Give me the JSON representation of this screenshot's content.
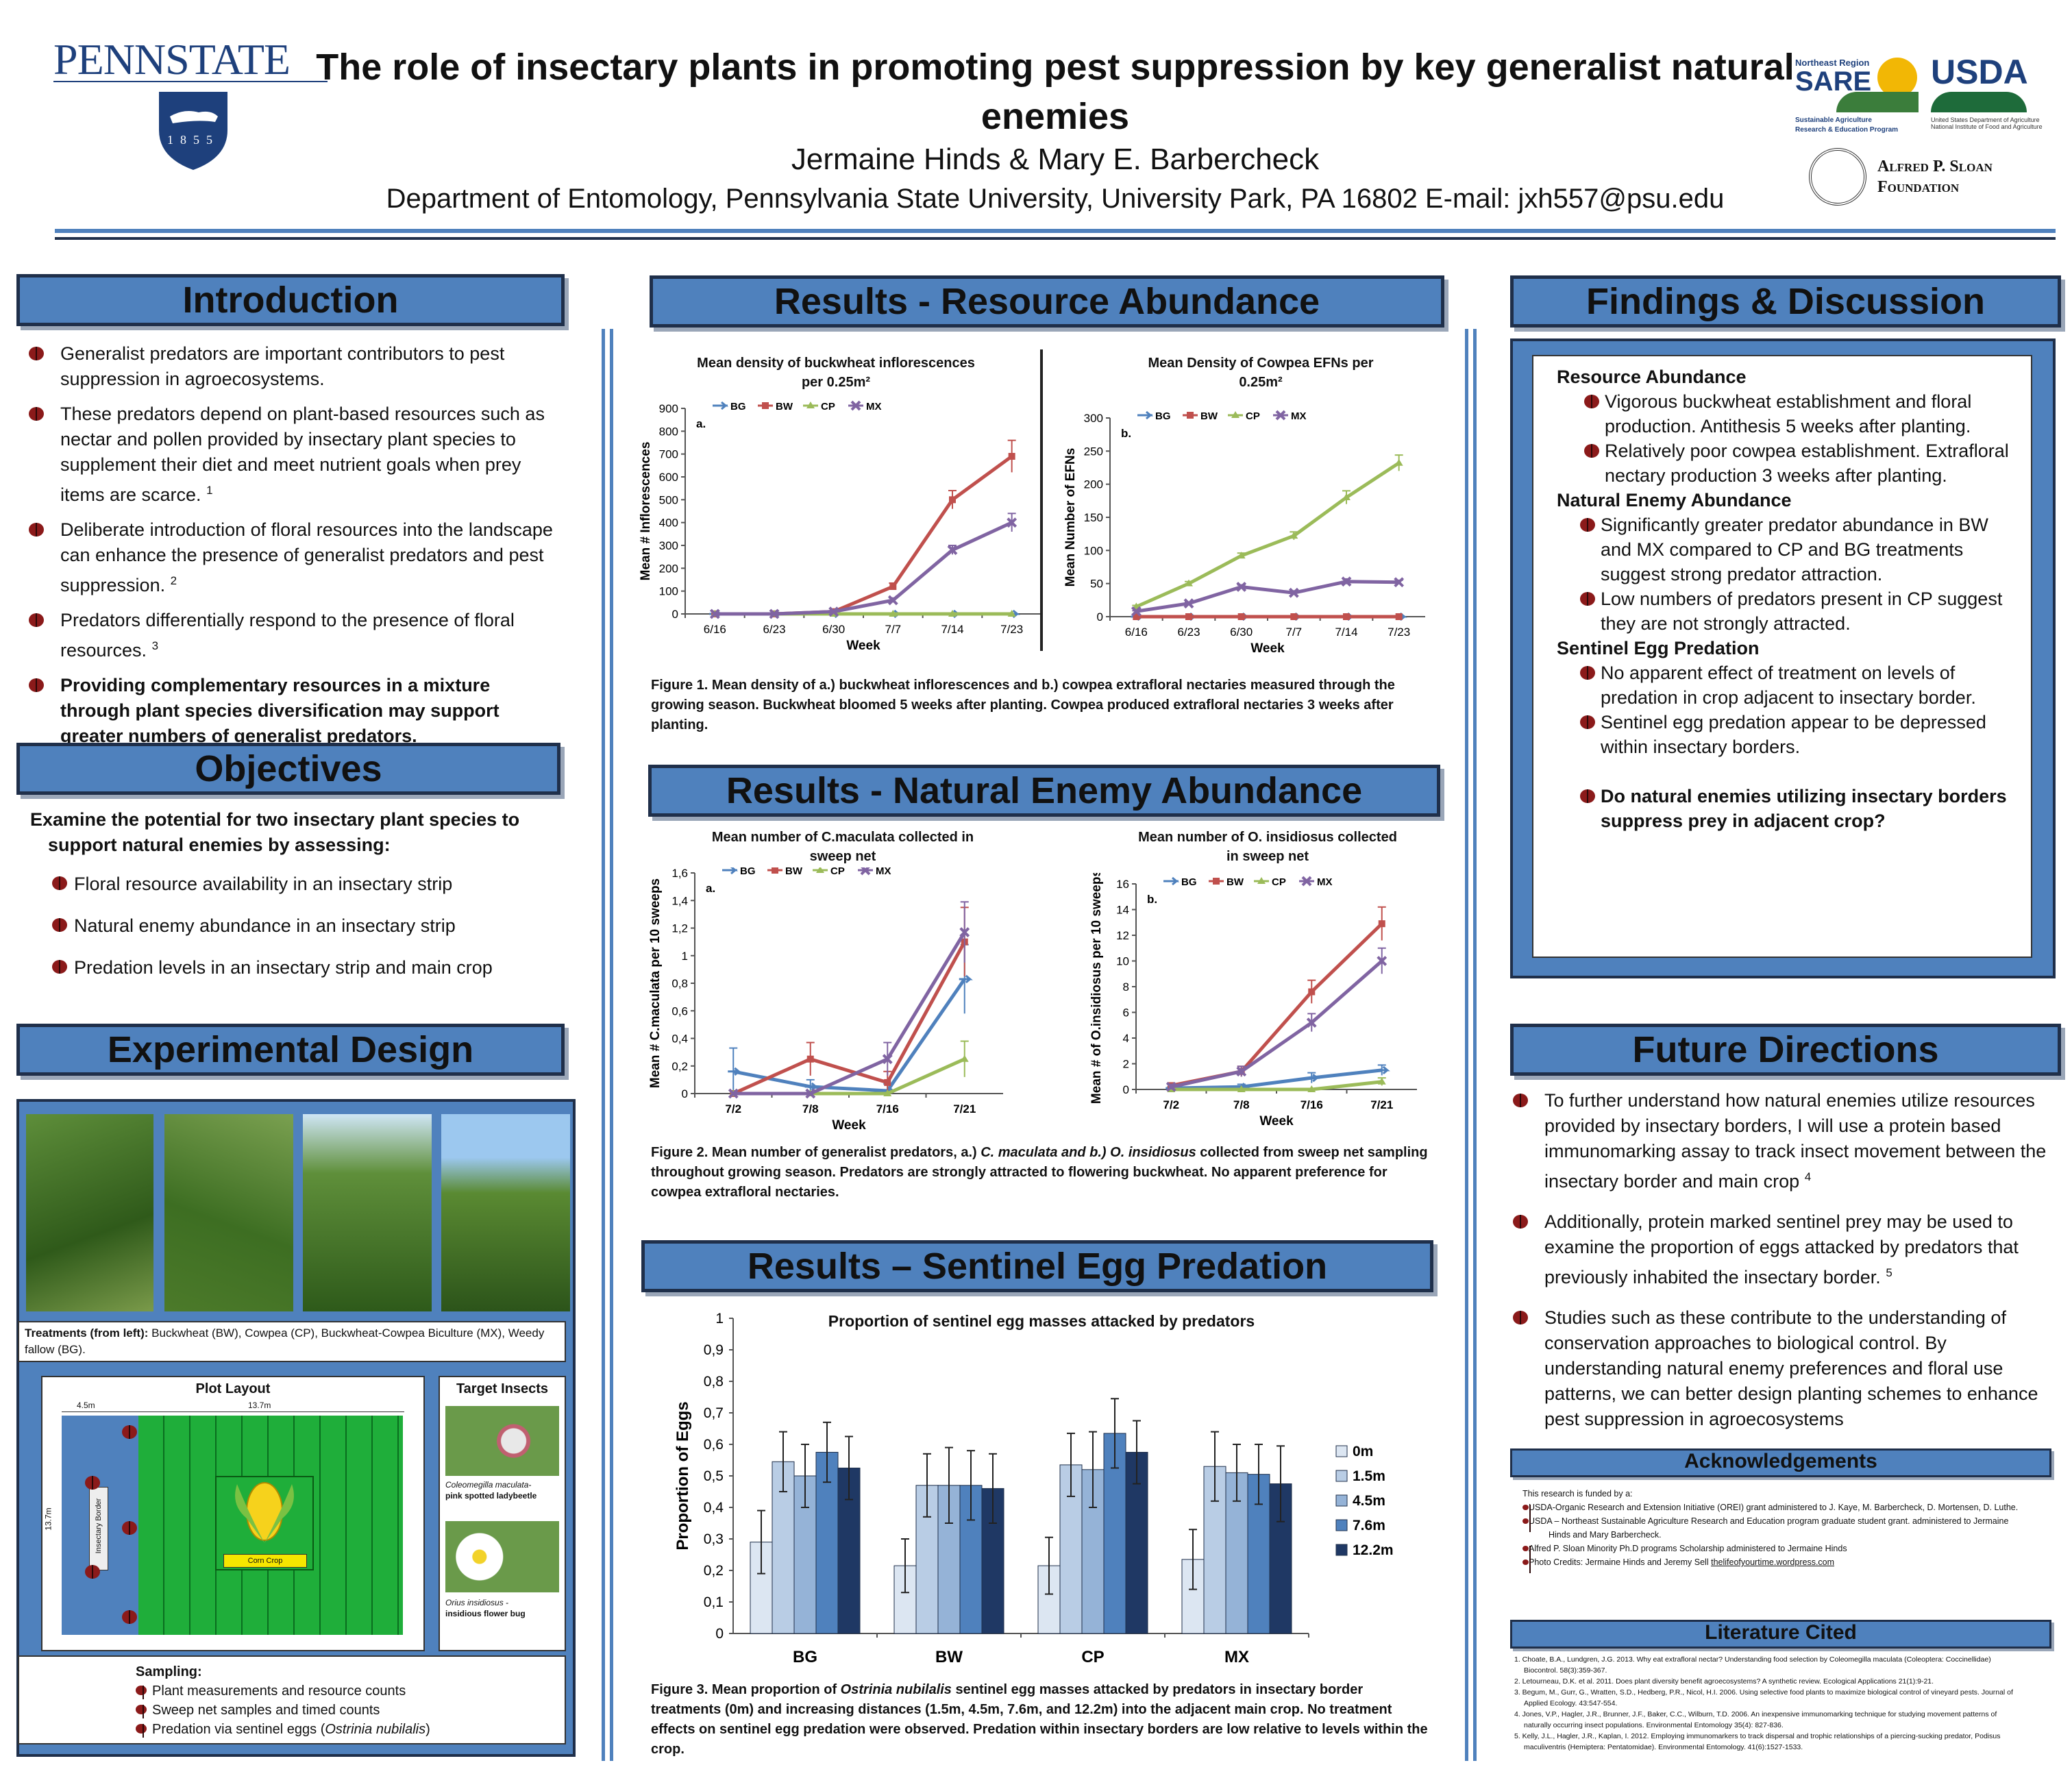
{
  "header": {
    "logo_text": "PENNSTATE",
    "logo_year": "1855",
    "title_line1": "The role of insectary plants in promoting pest suppression by key generalist natural",
    "title_line2": "enemies",
    "authors": "Jermaine Hinds & Mary E. Barbercheck",
    "affiliation": "Department of Entomology, Pennsylvania State University, University Park, PA 16802  E-mail: jxh557@psu.edu",
    "sare_top": "Northeast Region",
    "sare_big": "SARE",
    "sare_sub1": "Sustainable Agriculture",
    "sare_sub2": "Research & Education Program",
    "usda": "USDA",
    "usda_sub1": "United States Department of Agriculture",
    "usda_sub2": "National Institute of Food and Agriculture",
    "sloan1": "Alfred P. Sloan",
    "sloan2": "Foundation"
  },
  "introduction": {
    "heading": "Introduction",
    "b1": "Generalist predators are important contributors to pest suppression in agroecosystems.",
    "b2": "These predators depend on plant-based resources such as nectar and pollen provided by insectary plant species to supplement their diet and meet nutrient goals when prey items are scarce.",
    "b2_ref": "1",
    "b3": "Deliberate introduction of floral resources into the landscape can enhance the presence of  generalist predators and pest suppression.",
    "b3_ref": "2",
    "b4": "Predators differentially respond to the presence of floral resources.",
    "b4_ref": "3",
    "b5": "Providing complementary resources in a mixture through plant species diversification may support greater numbers of generalist predators."
  },
  "objectives": {
    "heading": "Objectives",
    "lead": "Examine the potential for two insectary plant species to support natural enemies by assessing:",
    "items": [
      "Floral resource availability in an insectary strip",
      "Natural enemy abundance in an insectary strip",
      "Predation levels in an insectary strip and main crop"
    ]
  },
  "design": {
    "heading": "Experimental Design",
    "treat_label": "Treatments (from left):",
    "treat_text": "Buckwheat (BW), Cowpea (CP), Buckwheat-Cowpea Biculture (MX), Weedy fallow (BG).",
    "plot_title": "Plot Layout",
    "dim1": "4.5m",
    "dim2": "13.7m",
    "dim3": "13.7m",
    "border_label": "Insectary Border",
    "crop_label": "Corn Crop",
    "target_title": "Target Insects",
    "ins1a": "Coleomegilla maculata-",
    "ins1b": "pink spotted ladybeetle",
    "ins2a": "Orius insidiosus -",
    "ins2b": "insidious flower bug",
    "samp_title": "Sampling:",
    "samp1": "Plant measurements and resource counts",
    "samp2": "Sweep net samples and timed counts",
    "samp3a": "Predation via sentinel eggs (",
    "samp3b": "Ostrinia nubilalis",
    "samp3c": ")"
  },
  "res_resource": {
    "heading": "Results - Resource Abundance",
    "caption": "Figure 1. Mean density of a.) buckwheat inflorescences and b.) cowpea extrafloral nectaries measured through the growing season. Buckwheat bloomed 5 weeks after planting. Cowpea produced extrafloral nectaries 3 weeks after planting."
  },
  "res_enemy": {
    "heading": "Results - Natural Enemy Abundance",
    "caption_a": "Figure 2. Mean number of generalist predators, a.)",
    "caption_b": "C. maculata and b.) O. insidiosus",
    "caption_c": "collected from sweep net sampling throughout growing season. Predators are strongly attracted to flowering buckwheat. No apparent preference for cowpea extrafloral nectaries."
  },
  "res_egg": {
    "heading": "Results – Sentinel Egg Predation",
    "caption_a": "Figure 3. Mean proportion of",
    "caption_b": "Ostrinia nubilalis",
    "caption_c": "sentinel egg masses attacked by predators in insectary border treatments (0m) and increasing distances (1.5m, 4.5m, 7.6m, and 12.2m) into the adjacent main crop. No treatment effects on sentinel egg predation were observed. Predation within insectary borders are low relative to levels within the crop."
  },
  "findings": {
    "heading": "Findings & Discussion",
    "h1": "Resource Abundance",
    "f1": "Vigorous buckwheat establishment and floral production. Antithesis 5 weeks after planting.",
    "f2": "Relatively poor cowpea establishment. Extrafloral nectary production 3 weeks after planting.",
    "h2": "Natural Enemy Abundance",
    "f3": "Significantly greater predator abundance in BW and MX compared to CP and BG treatments suggest strong predator attraction.",
    "f4": "Low numbers of predators present in CP suggest they are not strongly attracted.",
    "h3": "Sentinel Egg Predation",
    "f5": "No apparent effect of treatment on levels of predation in crop adjacent to insectary border.",
    "f6": "Sentinel egg predation appear to be depressed within insectary borders.",
    "q": "Do natural enemies utilizing insectary borders suppress prey in adjacent crop?"
  },
  "future": {
    "heading": "Future Directions",
    "d1": "To further understand how natural enemies utilize resources provided by insectary borders, I will use a protein based immunomarking assay to track insect movement between the insectary border and main crop",
    "d1_ref": "4",
    "d2": "Additionally, protein marked sentinel prey may be used to examine the proportion of eggs attacked by predators that previously inhabited the insectary border.",
    "d2_ref": "5",
    "d3": "Studies such as these contribute to the understanding of conservation approaches to biological control. By understanding natural enemy preferences and floral use patterns, we can better design planting schemes to enhance pest suppression in agroecosystems"
  },
  "ack": {
    "heading": "Acknowledgements",
    "lead": "This research is funded by a:",
    "a1": "USDA-Organic Research and Extension Initiative (OREI) grant administered to J. Kaye, M. Barbercheck, D. Mortensen, D. Luthe.",
    "a2": "USDA – Northeast Sustainable Agriculture Research and Education program graduate student grant. administered to Jermaine",
    "a2b": "Hinds and Mary Barbercheck.",
    "a3": "Alfred P. Sloan Minority Ph.D programs Scholarship administered to Jermaine Hinds",
    "a4": "Photo Credits: Jermaine Hinds and Jeremy Sell",
    "a4_link": "thelifeofyourtime.wordpress.com"
  },
  "lit": {
    "heading": "Literature Cited",
    "r1": "1. Choate, B.A., Lundgren, J.G. 2013. Why eat extrafloral nectar? Understanding food selection by Coleomegilla maculata (Coleoptera: Coccinellidae)",
    "r1b": "Biocontrol. 58(3):359-367.",
    "r2": "2. Letourneau, D.K. et al. 2011. Does plant diversity benefit agroecosystems? A synthetic review. Ecological Applications 21(1):9-21.",
    "r3": "3. Begum, M., Gurr, G., Wratten, S.D., Hedberg, P.R., Nicol, H.I. 2006. Using selective food plants to maximize biological control of vineyard pests. Journal of",
    "r3b": "Applied Ecology. 43:547-554.",
    "r4": "4. Jones, V.P., Hagler, J.R., Brunner, J.F., Baker, C.C., Wilburn, T.D. 2006. An inexpensive immunomarking technique for studying movement patterns of",
    "r4b": "naturally occurring insect populations. Environmental Entomology 35(4): 827-836.",
    "r5": "5. Kelly, J.L., Hagler, J.R., Kaplan, I. 2012. Employing immunomarkers to track dispersal and trophic relationships of a piercing-sucking predator, Podisus",
    "r5b": "maculiventris (Hemiptera: Pentatomidae). Environmental Entomology. 41(6):1527-1533."
  },
  "colors": {
    "BG": "#4f81bd",
    "BW": "#c0504d",
    "CP": "#9bbb59",
    "MX": "#8064a2",
    "accent": "#4f81bd"
  },
  "chart_data": [
    {
      "id": "fig1a",
      "type": "line",
      "panel": "a.",
      "title_l1": "Mean density of buckwheat inflorescences",
      "title_l2": "per 0.25m²",
      "xlabel": "Week",
      "ylabel": "Mean # Inflorescences",
      "x": [
        "6/16",
        "6/23",
        "6/30",
        "7/7",
        "7/14",
        "7/23"
      ],
      "ylim": [
        0,
        900
      ],
      "ystep": 100,
      "ydec": 0,
      "series": [
        {
          "name": "BG",
          "color": "#4f81bd",
          "values": [
            0,
            0,
            0,
            0,
            0,
            0
          ]
        },
        {
          "name": "BW",
          "color": "#c0504d",
          "values": [
            0,
            0,
            10,
            120,
            500,
            690
          ],
          "err": [
            0,
            0,
            5,
            15,
            40,
            70
          ]
        },
        {
          "name": "CP",
          "color": "#9bbb59",
          "values": [
            0,
            0,
            0,
            0,
            0,
            0
          ]
        },
        {
          "name": "MX",
          "color": "#8064a2",
          "values": [
            0,
            0,
            10,
            60,
            280,
            400
          ],
          "err": [
            0,
            0,
            5,
            10,
            20,
            40
          ]
        }
      ]
    },
    {
      "id": "fig1b",
      "type": "line",
      "panel": "b.",
      "title_l1": "Mean Density of Cowpea EFNs per",
      "title_l2": "0.25m²",
      "xlabel": "Week",
      "ylabel": "Mean Number of EFNs",
      "x": [
        "6/16",
        "6/23",
        "6/30",
        "7/7",
        "7/14",
        "7/23"
      ],
      "ylim": [
        0,
        300
      ],
      "ystep": 50,
      "ydec": 0,
      "series": [
        {
          "name": "BG",
          "color": "#4f81bd",
          "values": [
            0,
            0,
            0,
            0,
            0,
            0
          ]
        },
        {
          "name": "BW",
          "color": "#c0504d",
          "values": [
            0,
            0,
            0,
            0,
            0,
            0
          ]
        },
        {
          "name": "CP",
          "color": "#9bbb59",
          "values": [
            15,
            50,
            92,
            122,
            180,
            232
          ],
          "err": [
            2,
            3,
            4,
            6,
            10,
            12
          ]
        },
        {
          "name": "MX",
          "color": "#8064a2",
          "values": [
            8,
            20,
            45,
            36,
            53,
            52
          ],
          "err": [
            1,
            2,
            3,
            3,
            4,
            3
          ]
        }
      ]
    },
    {
      "id": "fig2a",
      "type": "line",
      "panel": "a.",
      "title_l1": "Mean number of C.maculata collected in",
      "title_l2": "sweep net",
      "xlabel": "Week",
      "ylabel": "Mean # C.maculata per 10 sweeps",
      "x": [
        "7/2",
        "7/8",
        "7/16",
        "7/21"
      ],
      "ylim": [
        0,
        1.6
      ],
      "ystep": 0.2,
      "ydec": 1,
      "comma": true,
      "series": [
        {
          "name": "BG",
          "color": "#4f81bd",
          "values": [
            0.16,
            0.05,
            0.02,
            0.83
          ],
          "err": [
            0.17,
            0.05,
            0.05,
            0.25
          ]
        },
        {
          "name": "BW",
          "color": "#c0504d",
          "values": [
            0,
            0.25,
            0.08,
            1.1
          ],
          "err": [
            0,
            0.12,
            0.08,
            0.25
          ]
        },
        {
          "name": "CP",
          "color": "#9bbb59",
          "values": [
            0,
            0,
            0,
            0.25
          ],
          "err": [
            0,
            0,
            0,
            0.13
          ]
        },
        {
          "name": "MX",
          "color": "#8064a2",
          "values": [
            0,
            0,
            0.25,
            1.17
          ],
          "err": [
            0,
            0,
            0.12,
            0.22
          ]
        }
      ]
    },
    {
      "id": "fig2b",
      "type": "line",
      "panel": "b.",
      "title_l1": "Mean number of O. insidiosus collected",
      "title_l2": "in sweep net",
      "xlabel": "Week",
      "ylabel": "Mean # of O.insidiosus per 10 sweeps",
      "x": [
        "7/2",
        "7/8",
        "7/16",
        "7/21"
      ],
      "ylim": [
        0,
        16
      ],
      "ystep": 2,
      "ydec": 0,
      "series": [
        {
          "name": "BG",
          "color": "#4f81bd",
          "values": [
            0.1,
            0.2,
            0.9,
            1.5
          ],
          "err": [
            0.1,
            0.2,
            0.4,
            0.4
          ]
        },
        {
          "name": "BW",
          "color": "#c0504d",
          "values": [
            0.3,
            1.4,
            7.6,
            12.9
          ],
          "err": [
            0.2,
            0.4,
            0.9,
            1.3
          ]
        },
        {
          "name": "CP",
          "color": "#9bbb59",
          "values": [
            0,
            0,
            0,
            0.6
          ],
          "err": [
            0,
            0,
            0,
            0.3
          ]
        },
        {
          "name": "MX",
          "color": "#8064a2",
          "values": [
            0.2,
            1.4,
            5.2,
            10
          ],
          "err": [
            0.2,
            0.4,
            0.7,
            1
          ]
        }
      ]
    },
    {
      "id": "fig3",
      "type": "bar",
      "title": "Proportion of sentinel egg masses attacked by predators",
      "ylabel": "Proportion of Eggs",
      "categories": [
        "BG",
        "BW",
        "CP",
        "MX"
      ],
      "ylim": [
        0,
        1
      ],
      "ystep": 0.1,
      "ydec": 1,
      "comma": true,
      "series": [
        {
          "name": "0m",
          "color": "#dce6f2",
          "values": [
            0.29,
            0.215,
            0.215,
            0.235
          ],
          "err": [
            0.1,
            0.085,
            0.09,
            0.095
          ]
        },
        {
          "name": "1.5m",
          "color": "#b9cde5",
          "values": [
            0.545,
            0.47,
            0.535,
            0.53
          ],
          "err": [
            0.095,
            0.1,
            0.1,
            0.11
          ]
        },
        {
          "name": "4.5m",
          "color": "#95b3d7",
          "values": [
            0.5,
            0.47,
            0.52,
            0.51
          ],
          "err": [
            0.1,
            0.12,
            0.12,
            0.09
          ]
        },
        {
          "name": "7.6m",
          "color": "#4f81bd",
          "values": [
            0.575,
            0.47,
            0.635,
            0.505
          ],
          "err": [
            0.095,
            0.11,
            0.11,
            0.095
          ]
        },
        {
          "name": "12.2m",
          "color": "#1f3864",
          "values": [
            0.525,
            0.46,
            0.575,
            0.475
          ],
          "err": [
            0.1,
            0.11,
            0.1,
            0.12
          ]
        }
      ]
    }
  ]
}
